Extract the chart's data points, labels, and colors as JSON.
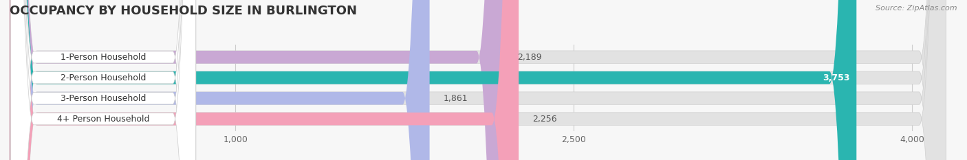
{
  "title": "OCCUPANCY BY HOUSEHOLD SIZE IN BURLINGTON",
  "source": "Source: ZipAtlas.com",
  "categories": [
    "1-Person Household",
    "2-Person Household",
    "3-Person Household",
    "4+ Person Household"
  ],
  "values": [
    2189,
    3753,
    1861,
    2256
  ],
  "bar_colors": [
    "#c9a8d4",
    "#2ab5b0",
    "#b0b8e8",
    "#f4a0b8"
  ],
  "value_label_colors": [
    "#555555",
    "#ffffff",
    "#555555",
    "#555555"
  ],
  "xlim": [
    0,
    4200
  ],
  "xticks": [
    1000,
    2500,
    4000
  ],
  "background_color": "#f7f7f7",
  "bar_bg_color": "#e2e2e2",
  "bar_height": 0.62,
  "label_box_color": "#ffffff",
  "label_text_color": "#333333",
  "figsize": [
    14.06,
    2.33
  ],
  "dpi": 100,
  "title_fontsize": 13,
  "label_fontsize": 9,
  "value_fontsize": 9,
  "tick_fontsize": 9
}
